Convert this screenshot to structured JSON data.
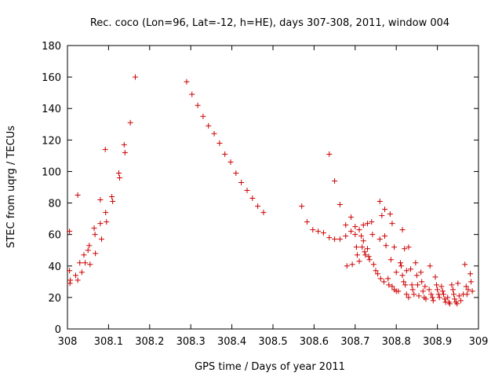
{
  "chart_data": {
    "type": "scatter",
    "title": "Rec. coco (Lon=96, Lat=-12, h=HE), days 307-308, 2011, window 004",
    "xlabel": "GPS time / Days of year 2011",
    "ylabel": "STEC from uqrg / TECUs",
    "xlim": [
      308,
      309
    ],
    "ylim": [
      0,
      180
    ],
    "x_ticks": [
      308,
      308.1,
      308.2,
      308.3,
      308.4,
      308.5,
      308.6,
      308.7,
      308.8,
      308.9,
      309
    ],
    "x_tick_labels": [
      "308",
      "308.1",
      "308.2",
      "308.3",
      "308.4",
      "308.5",
      "308.6",
      "308.7",
      "308.8",
      "308.9",
      "309"
    ],
    "y_ticks": [
      0,
      20,
      40,
      60,
      80,
      100,
      120,
      140,
      160,
      180
    ],
    "y_tick_labels": [
      "0",
      "20",
      "40",
      "60",
      "80",
      "100",
      "120",
      "140",
      "160",
      "180"
    ],
    "marker": "plus",
    "grid": false,
    "colors": {
      "points": "#cc0000",
      "axes": "#000000",
      "background": "#ffffff"
    },
    "series": [
      {
        "points": [
          [
            308.005,
            62
          ],
          [
            308.005,
            37
          ],
          [
            308.006,
            29
          ],
          [
            308.007,
            31
          ],
          [
            308.02,
            34
          ],
          [
            308.025,
            85
          ],
          [
            308.025,
            31
          ],
          [
            308.03,
            42
          ],
          [
            308.035,
            36
          ],
          [
            308.04,
            47
          ],
          [
            308.043,
            42
          ],
          [
            308.05,
            50
          ],
          [
            308.053,
            53
          ],
          [
            308.055,
            41
          ],
          [
            308.065,
            64
          ],
          [
            308.067,
            60
          ],
          [
            308.068,
            48
          ],
          [
            308.08,
            82
          ],
          [
            308.08,
            67
          ],
          [
            308.083,
            57
          ],
          [
            308.092,
            114
          ],
          [
            308.093,
            74
          ],
          [
            308.095,
            68
          ],
          [
            308.108,
            84
          ],
          [
            308.11,
            81
          ],
          [
            308.125,
            99
          ],
          [
            308.127,
            96
          ],
          [
            308.138,
            117
          ],
          [
            308.14,
            112
          ],
          [
            308.153,
            131
          ],
          [
            308.165,
            160
          ],
          [
            308.29,
            157
          ],
          [
            308.303,
            149
          ],
          [
            308.317,
            142
          ],
          [
            308.33,
            135
          ],
          [
            308.343,
            129
          ],
          [
            308.357,
            124
          ],
          [
            308.37,
            118
          ],
          [
            308.383,
            111
          ],
          [
            308.397,
            106
          ],
          [
            308.41,
            99
          ],
          [
            308.423,
            93
          ],
          [
            308.437,
            88
          ],
          [
            308.45,
            83
          ],
          [
            308.463,
            78
          ],
          [
            308.477,
            74
          ],
          [
            308.57,
            78
          ],
          [
            308.583,
            68
          ],
          [
            308.597,
            63
          ],
          [
            308.61,
            62
          ],
          [
            308.623,
            61
          ],
          [
            308.637,
            111
          ],
          [
            308.637,
            58
          ],
          [
            308.65,
            94
          ],
          [
            308.65,
            57
          ],
          [
            308.663,
            79
          ],
          [
            308.663,
            57
          ],
          [
            308.677,
            66
          ],
          [
            308.677,
            59
          ],
          [
            308.68,
            40
          ],
          [
            308.69,
            71
          ],
          [
            308.69,
            62
          ],
          [
            308.693,
            41
          ],
          [
            308.7,
            65
          ],
          [
            308.7,
            60
          ],
          [
            308.703,
            52
          ],
          [
            308.705,
            47
          ],
          [
            308.71,
            63
          ],
          [
            308.71,
            43
          ],
          [
            308.715,
            59
          ],
          [
            308.717,
            52
          ],
          [
            308.72,
            66
          ],
          [
            308.72,
            56
          ],
          [
            308.723,
            49
          ],
          [
            308.725,
            47
          ],
          [
            308.73,
            67
          ],
          [
            308.73,
            51
          ],
          [
            308.733,
            46
          ],
          [
            308.735,
            44
          ],
          [
            308.74,
            68
          ],
          [
            308.742,
            60
          ],
          [
            308.745,
            41
          ],
          [
            308.75,
            37
          ],
          [
            308.755,
            35
          ],
          [
            308.76,
            81
          ],
          [
            308.76,
            57
          ],
          [
            308.762,
            32
          ],
          [
            308.765,
            72
          ],
          [
            308.77,
            30
          ],
          [
            308.772,
            76
          ],
          [
            308.772,
            59
          ],
          [
            308.775,
            53
          ],
          [
            308.78,
            32
          ],
          [
            308.782,
            28
          ],
          [
            308.785,
            73
          ],
          [
            308.787,
            44
          ],
          [
            308.79,
            67
          ],
          [
            308.79,
            27
          ],
          [
            308.795,
            52
          ],
          [
            308.795,
            25
          ],
          [
            308.8,
            36
          ],
          [
            308.8,
            24
          ],
          [
            308.805,
            24
          ],
          [
            308.81,
            42
          ],
          [
            308.812,
            40
          ],
          [
            308.815,
            63
          ],
          [
            308.815,
            34
          ],
          [
            308.818,
            30
          ],
          [
            308.82,
            51
          ],
          [
            308.822,
            28
          ],
          [
            308.825,
            37
          ],
          [
            308.825,
            22
          ],
          [
            308.83,
            52
          ],
          [
            308.83,
            20
          ],
          [
            308.835,
            38
          ],
          [
            308.838,
            28
          ],
          [
            308.84,
            25
          ],
          [
            308.843,
            22
          ],
          [
            308.847,
            42
          ],
          [
            308.85,
            34
          ],
          [
            308.852,
            28
          ],
          [
            308.855,
            21
          ],
          [
            308.86,
            36
          ],
          [
            308.862,
            30
          ],
          [
            308.865,
            24
          ],
          [
            308.868,
            20
          ],
          [
            308.87,
            27
          ],
          [
            308.872,
            19
          ],
          [
            308.88,
            25
          ],
          [
            308.882,
            40
          ],
          [
            308.885,
            22
          ],
          [
            308.888,
            20
          ],
          [
            308.89,
            18
          ],
          [
            308.895,
            33
          ],
          [
            308.898,
            28
          ],
          [
            308.9,
            25
          ],
          [
            308.903,
            22
          ],
          [
            308.905,
            20
          ],
          [
            308.91,
            27
          ],
          [
            308.913,
            24
          ],
          [
            308.915,
            22
          ],
          [
            308.918,
            19
          ],
          [
            308.92,
            17
          ],
          [
            308.925,
            20
          ],
          [
            308.928,
            17
          ],
          [
            308.93,
            16
          ],
          [
            308.935,
            28
          ],
          [
            308.938,
            25
          ],
          [
            308.94,
            22
          ],
          [
            308.942,
            19
          ],
          [
            308.945,
            17
          ],
          [
            308.948,
            16
          ],
          [
            308.95,
            29
          ],
          [
            308.953,
            21
          ],
          [
            308.957,
            18
          ],
          [
            308.963,
            22
          ],
          [
            308.967,
            41
          ],
          [
            308.97,
            27
          ],
          [
            308.972,
            22
          ],
          [
            308.975,
            25
          ],
          [
            308.98,
            35
          ],
          [
            308.982,
            30
          ],
          [
            308.985,
            24
          ]
        ]
      }
    ]
  }
}
